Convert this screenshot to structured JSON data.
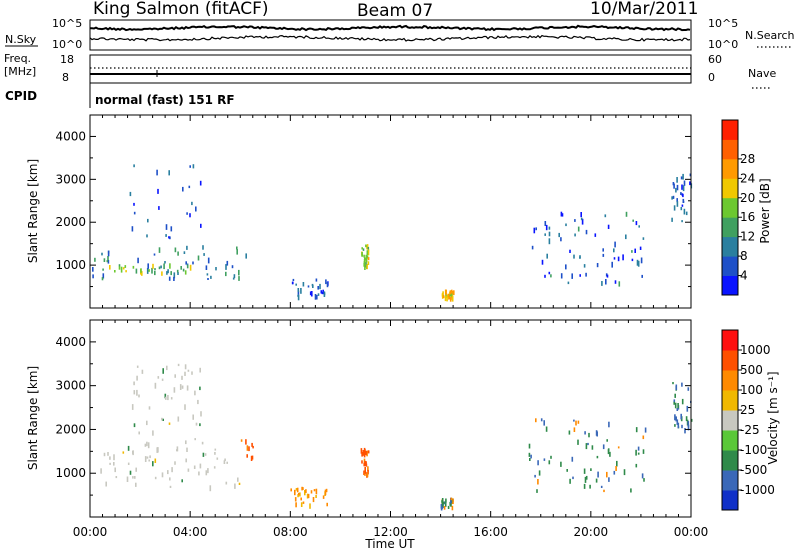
{
  "header": {
    "station": "King Salmon (fitACF)",
    "beam": "Beam 07",
    "date": "10/Mar/2011"
  },
  "status_panels": {
    "nsky_label": "N.Sky",
    "nsearch_label": "N.Search",
    "noise_ticks": [
      "10^5",
      "10^0"
    ],
    "freq_label_line1": "Freq.",
    "freq_label_line2": "[MHz]",
    "freq_ticks": [
      "18",
      "8"
    ],
    "nave_label": "Nave",
    "nave_ticks": [
      "60",
      "0"
    ],
    "cpid_label": "CPID",
    "cpid_text": "normal (fast) 151 RF"
  },
  "chart_data": [
    {
      "type": "heatmap",
      "name": "power",
      "xlabel": "Time UT",
      "ylabel": "Slant Range [km]",
      "x_ticks": [
        "00:00",
        "04:00",
        "08:00",
        "12:00",
        "16:00",
        "20:00",
        "00:00"
      ],
      "x_range_hours": [
        0,
        24
      ],
      "ylim": [
        0,
        4500
      ],
      "y_ticks": [
        1000,
        2000,
        3000,
        4000
      ],
      "colorbar": {
        "label": "Power [dB]",
        "ticks": [
          "4",
          "8",
          "12",
          "16",
          "20",
          "24",
          "28"
        ],
        "colors": [
          "#0a14ff",
          "#1e50c8",
          "#2a7f9f",
          "#40a060",
          "#6cc830",
          "#f0c800",
          "#ff9a00",
          "#ff6000",
          "#ff2000"
        ]
      },
      "regions": [
        {
          "t0": 0.0,
          "t1": 6.4,
          "r0": 700,
          "r1": 1500,
          "level": 8
        },
        {
          "t0": 0.3,
          "t1": 4.0,
          "r0": 850,
          "r1": 1050,
          "level": 14
        },
        {
          "t0": 1.5,
          "t1": 4.5,
          "r0": 1500,
          "r1": 3500,
          "level": 5
        },
        {
          "t0": 8.0,
          "t1": 9.6,
          "r0": 300,
          "r1": 700,
          "level": 6
        },
        {
          "t0": 10.8,
          "t1": 11.1,
          "r0": 1000,
          "r1": 1500,
          "level": 16
        },
        {
          "t0": 14.0,
          "t1": 14.5,
          "r0": 250,
          "r1": 450,
          "level": 18
        },
        {
          "t0": 17.5,
          "t1": 22.2,
          "r0": 600,
          "r1": 2300,
          "level": 6
        },
        {
          "t0": 23.2,
          "t1": 24.0,
          "r0": 2000,
          "r1": 3200,
          "level": 5
        }
      ]
    },
    {
      "type": "heatmap",
      "name": "velocity",
      "xlabel": "Time UT",
      "ylabel": "Slant Range [km]",
      "x_ticks": [
        "00:00",
        "04:00",
        "08:00",
        "12:00",
        "16:00",
        "20:00",
        "00:00"
      ],
      "x_range_hours": [
        0,
        24
      ],
      "ylim": [
        0,
        4500
      ],
      "y_ticks": [
        1000,
        2000,
        3000,
        4000
      ],
      "colorbar": {
        "label": "Velocity [m s⁻¹]",
        "ticks": [
          "1000",
          "500",
          "100",
          "25",
          "-25",
          "-100",
          "-500",
          "-1000"
        ],
        "colors": [
          "#1030c8",
          "#3a68b8",
          "#2f8a4a",
          "#5ac838",
          "#c8c8c0",
          "#f0b800",
          "#ff8a00",
          "#ff5000",
          "#ff1010"
        ]
      },
      "regions": [
        {
          "t0": 0.0,
          "t1": 6.0,
          "r0": 700,
          "r1": 1600,
          "level": 0
        },
        {
          "t0": 1.5,
          "t1": 4.5,
          "r0": 1500,
          "r1": 3500,
          "level": 0
        },
        {
          "t0": 6.0,
          "t1": 6.5,
          "r0": 1200,
          "r1": 1800,
          "level": -600
        },
        {
          "t0": 8.0,
          "t1": 9.6,
          "r0": 300,
          "r1": 700,
          "level": -200
        },
        {
          "t0": 10.8,
          "t1": 11.1,
          "r0": 1000,
          "r1": 1600,
          "level": -600
        },
        {
          "t0": 14.0,
          "t1": 14.5,
          "r0": 250,
          "r1": 450,
          "level": 80
        },
        {
          "t0": 17.5,
          "t1": 22.2,
          "r0": 600,
          "r1": 2300,
          "level": 150
        },
        {
          "t0": 23.2,
          "t1": 24.0,
          "r0": 2000,
          "r1": 3200,
          "level": 400
        }
      ]
    }
  ]
}
